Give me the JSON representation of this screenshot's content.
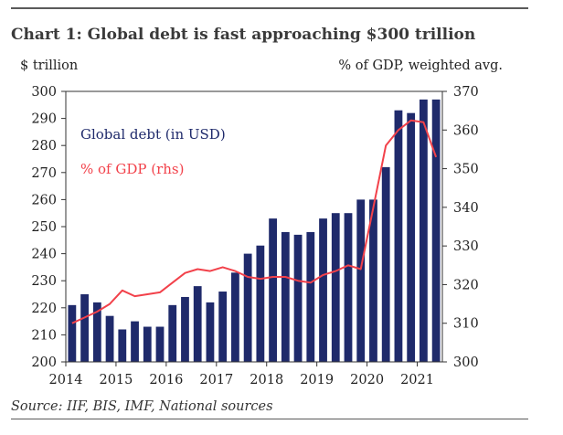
{
  "title": "Chart 1: Global debt is fast approaching $300 trillion",
  "left_unit": "$ trillion",
  "right_unit": "% of GDP, weighted avg.",
  "source": "Source: IIF, BIS, IMF, National sources",
  "colors": {
    "bars": "#1f2a6b",
    "line": "#f2414a",
    "frame": "#333333",
    "text": "#222222"
  },
  "chart_data": {
    "type": "bar",
    "title": "Chart 1: Global debt is fast approaching $300 trillion",
    "ylabel": "$ trillion",
    "y2label": "% of GDP, weighted avg.",
    "ylim": [
      200,
      300
    ],
    "y_ticks": [
      200,
      210,
      220,
      230,
      240,
      250,
      260,
      270,
      280,
      290,
      300
    ],
    "y2lim": [
      300,
      370
    ],
    "y2_ticks": [
      300,
      310,
      320,
      330,
      340,
      350,
      360,
      370
    ],
    "x_ticks": [
      "2014",
      "2015",
      "2016",
      "2017",
      "2018",
      "2019",
      "2020",
      "2021"
    ],
    "grid": false,
    "legend_position": "top-left",
    "categories": [
      "2014Q1",
      "2014Q2",
      "2014Q3",
      "2014Q4",
      "2015Q1",
      "2015Q2",
      "2015Q3",
      "2015Q4",
      "2016Q1",
      "2016Q2",
      "2016Q3",
      "2016Q4",
      "2017Q1",
      "2017Q2",
      "2017Q3",
      "2017Q4",
      "2018Q1",
      "2018Q2",
      "2018Q3",
      "2018Q4",
      "2019Q1",
      "2019Q2",
      "2019Q3",
      "2019Q4",
      "2020Q1",
      "2020Q2",
      "2020Q3",
      "2020Q4",
      "2021Q1",
      "2021Q2"
    ],
    "series": [
      {
        "name": "Global debt (in USD)",
        "type": "bar",
        "axis": "left",
        "values": [
          221,
          225,
          222,
          217,
          212,
          215,
          213,
          213,
          221,
          224,
          228,
          222,
          226,
          233,
          240,
          243,
          253,
          248,
          247,
          248,
          253,
          255,
          255,
          260,
          260,
          272,
          293,
          292,
          297,
          297
        ]
      },
      {
        "name": "% of GDP (rhs)",
        "type": "line",
        "axis": "right",
        "values": [
          310,
          311.5,
          313,
          315,
          318.5,
          317,
          317.5,
          318,
          320.5,
          323,
          324,
          323.5,
          324.5,
          323.5,
          322,
          321.5,
          322,
          322,
          321,
          320.5,
          322.5,
          323.5,
          325,
          324,
          340,
          356,
          360,
          362.5,
          362,
          353
        ]
      }
    ]
  }
}
